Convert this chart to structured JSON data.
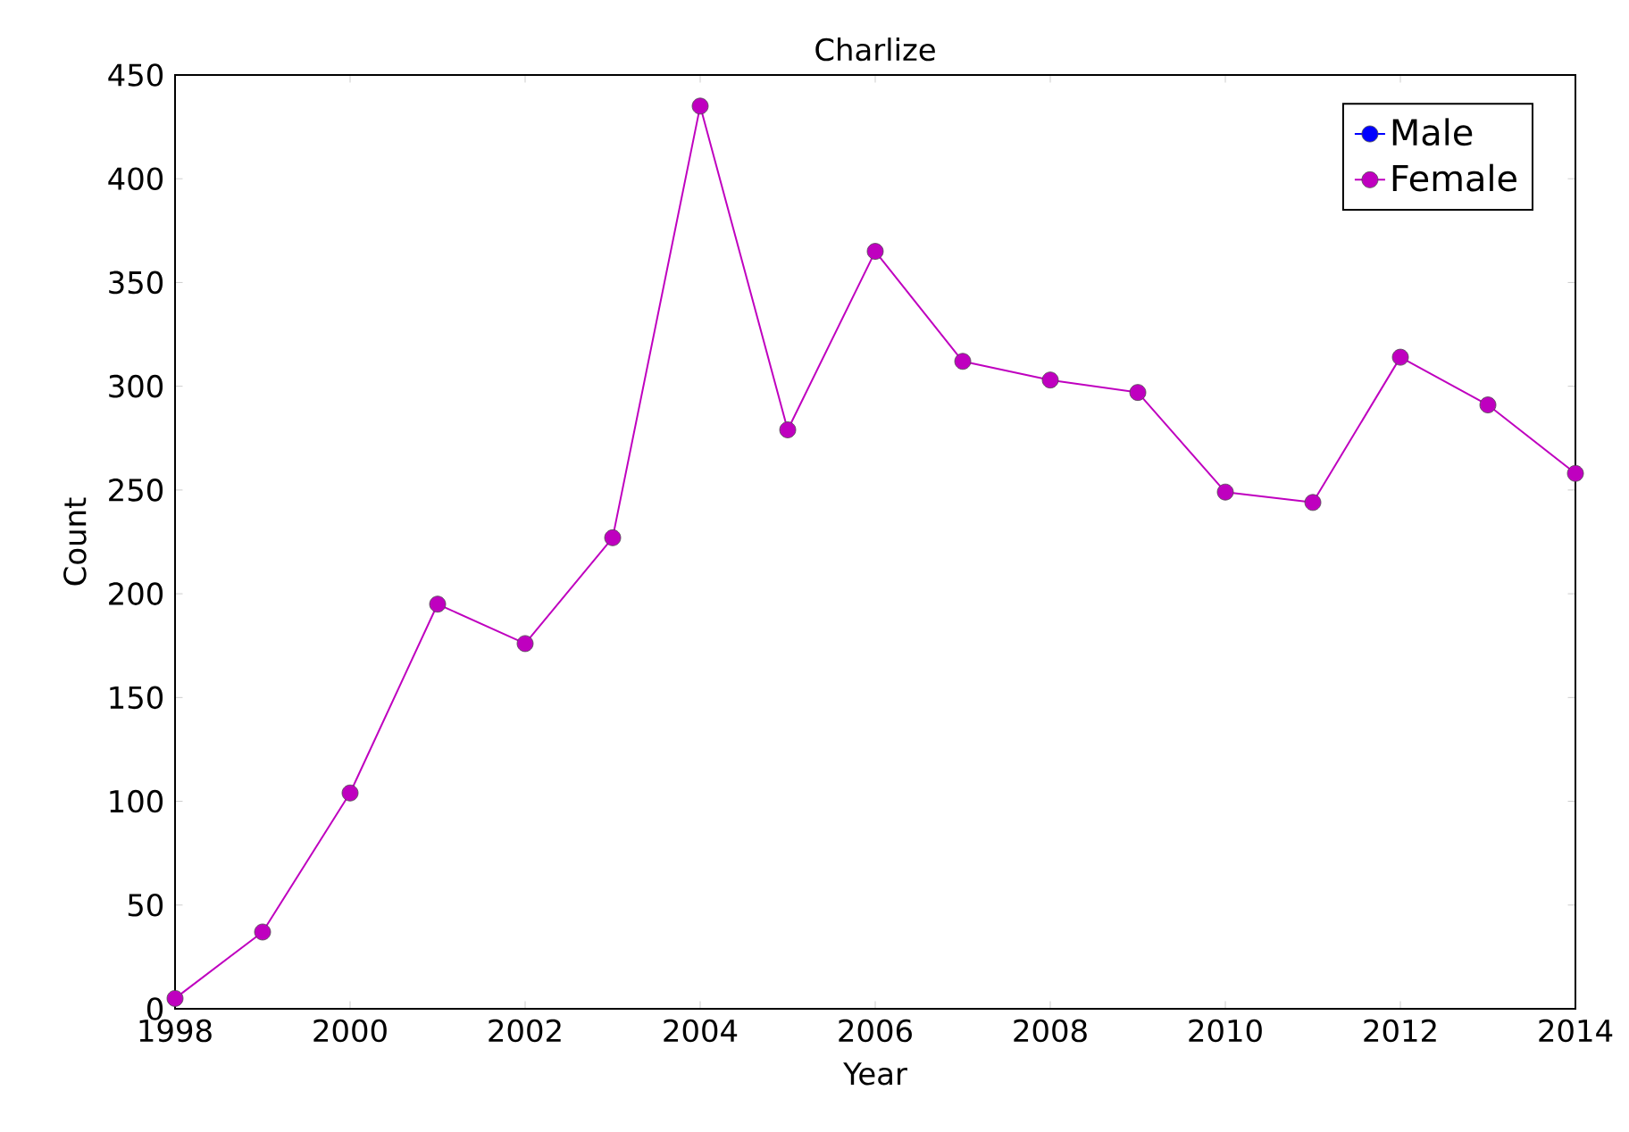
{
  "chart_data": {
    "type": "line",
    "title": "Charlize",
    "xlabel": "Year",
    "ylabel": "Count",
    "x": [
      1998,
      1999,
      2000,
      2001,
      2002,
      2003,
      2004,
      2005,
      2006,
      2007,
      2008,
      2009,
      2010,
      2011,
      2012,
      2013,
      2014
    ],
    "series": [
      {
        "name": "Male",
        "color": "#0000ff",
        "values": [
          null,
          null,
          null,
          null,
          null,
          null,
          null,
          null,
          null,
          null,
          null,
          null,
          null,
          null,
          null,
          null,
          null
        ]
      },
      {
        "name": "Female",
        "color": "#bf00bf",
        "values": [
          5,
          37,
          104,
          195,
          176,
          227,
          435,
          279,
          365,
          312,
          303,
          297,
          249,
          244,
          314,
          291,
          258
        ]
      }
    ],
    "xlim": [
      1998,
      2014
    ],
    "xticks": [
      1998,
      2000,
      2002,
      2004,
      2006,
      2008,
      2010,
      2012,
      2014
    ],
    "ylim": [
      0,
      450
    ],
    "yticks": [
      0,
      50,
      100,
      150,
      200,
      250,
      300,
      350,
      400,
      450
    ],
    "legend": "top right",
    "grid": false,
    "marker": "circle",
    "line_style": "solid"
  }
}
